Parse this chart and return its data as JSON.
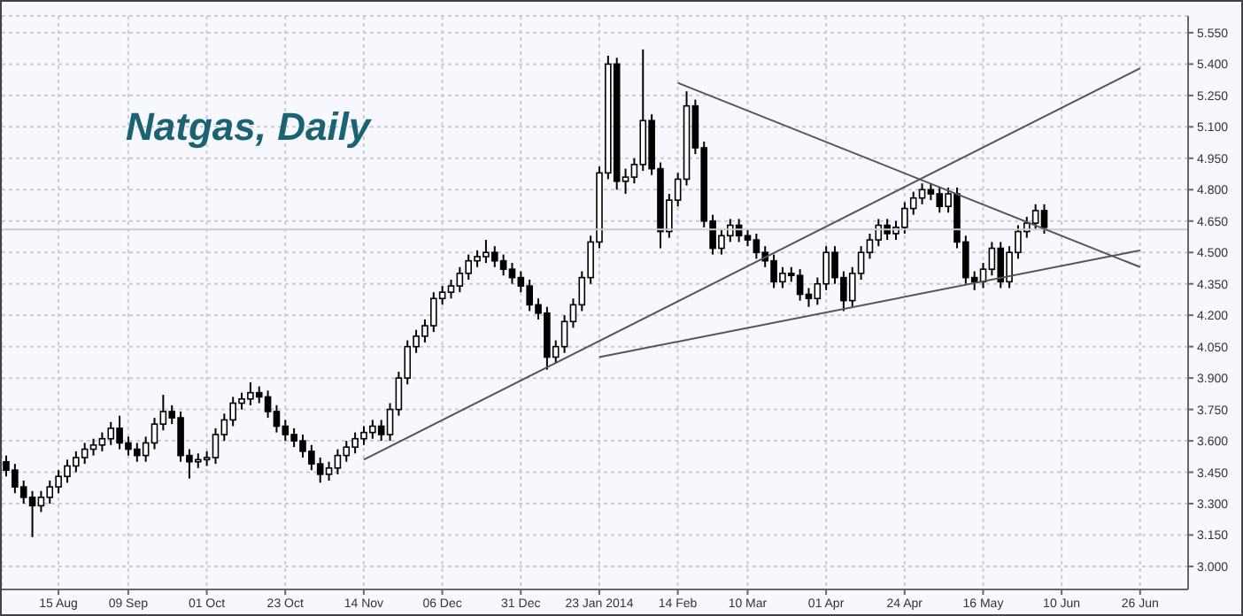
{
  "chart_data": {
    "type": "candlestick",
    "title": "Natgas, Daily",
    "color": "#000000",
    "grid": true,
    "categories": [
      null,
      null,
      null,
      null,
      null,
      null,
      "15 Aug",
      null,
      null,
      null,
      null,
      null,
      null,
      null,
      "09 Sep",
      null,
      null,
      null,
      null,
      null,
      null,
      null,
      null,
      "01 Oct",
      null,
      null,
      null,
      null,
      null,
      null,
      null,
      null,
      "23 Oct",
      null,
      null,
      null,
      null,
      null,
      null,
      null,
      null,
      "14 Nov",
      null,
      null,
      null,
      null,
      null,
      null,
      null,
      null,
      "06 Dec",
      null,
      null,
      null,
      null,
      null,
      null,
      null,
      null,
      "31 Dec",
      null,
      null,
      null,
      null,
      null,
      null,
      null,
      null,
      "23 Jan 2014",
      null,
      null,
      null,
      null,
      null,
      null,
      null,
      null,
      "14 Feb",
      null,
      null,
      null,
      null,
      null,
      null,
      null,
      "10 Mar",
      null,
      null,
      null,
      null,
      null,
      null,
      null,
      null,
      "01 Apr",
      null,
      null,
      null,
      null,
      null,
      null,
      null,
      null,
      "24 Apr",
      null,
      null,
      null,
      null,
      null,
      null,
      null,
      null,
      "16 May",
      null,
      null,
      null,
      null,
      null,
      null,
      null,
      null,
      "10 Jun",
      null,
      null,
      null,
      null,
      null,
      null,
      null,
      null,
      "26 Jun",
      null,
      null,
      null,
      null,
      null
    ],
    "ohlc": [
      [
        3.5,
        3.53,
        3.43,
        3.46
      ],
      [
        3.46,
        3.49,
        3.35,
        3.38
      ],
      [
        3.38,
        3.41,
        3.3,
        3.33
      ],
      [
        3.33,
        3.36,
        3.14,
        3.29
      ],
      [
        3.29,
        3.36,
        3.26,
        3.33
      ],
      [
        3.33,
        3.41,
        3.3,
        3.38
      ],
      [
        3.38,
        3.46,
        3.35,
        3.43
      ],
      [
        3.43,
        3.51,
        3.4,
        3.48
      ],
      [
        3.48,
        3.55,
        3.45,
        3.52
      ],
      [
        3.52,
        3.59,
        3.49,
        3.56
      ],
      [
        3.56,
        3.61,
        3.53,
        3.58
      ],
      [
        3.58,
        3.64,
        3.55,
        3.61
      ],
      [
        3.61,
        3.69,
        3.58,
        3.66
      ],
      [
        3.66,
        3.72,
        3.56,
        3.59
      ],
      [
        3.59,
        3.62,
        3.53,
        3.56
      ],
      [
        3.56,
        3.59,
        3.5,
        3.53
      ],
      [
        3.53,
        3.62,
        3.5,
        3.59
      ],
      [
        3.59,
        3.71,
        3.56,
        3.68
      ],
      [
        3.68,
        3.82,
        3.65,
        3.74
      ],
      [
        3.74,
        3.77,
        3.68,
        3.71
      ],
      [
        3.71,
        3.74,
        3.5,
        3.53
      ],
      [
        3.53,
        3.56,
        3.42,
        3.5
      ],
      [
        3.5,
        3.54,
        3.47,
        3.51
      ],
      [
        3.51,
        3.55,
        3.48,
        3.52
      ],
      [
        3.52,
        3.66,
        3.49,
        3.63
      ],
      [
        3.63,
        3.73,
        3.6,
        3.7
      ],
      [
        3.7,
        3.81,
        3.67,
        3.78
      ],
      [
        3.78,
        3.83,
        3.75,
        3.8
      ],
      [
        3.8,
        3.88,
        3.77,
        3.83
      ],
      [
        3.83,
        3.86,
        3.78,
        3.81
      ],
      [
        3.81,
        3.84,
        3.71,
        3.74
      ],
      [
        3.74,
        3.77,
        3.64,
        3.67
      ],
      [
        3.67,
        3.7,
        3.6,
        3.63
      ],
      [
        3.63,
        3.66,
        3.57,
        3.6
      ],
      [
        3.6,
        3.63,
        3.52,
        3.55
      ],
      [
        3.55,
        3.58,
        3.46,
        3.49
      ],
      [
        3.49,
        3.52,
        3.4,
        3.44
      ],
      [
        3.44,
        3.5,
        3.41,
        3.47
      ],
      [
        3.47,
        3.56,
        3.44,
        3.53
      ],
      [
        3.53,
        3.6,
        3.5,
        3.57
      ],
      [
        3.57,
        3.64,
        3.54,
        3.61
      ],
      [
        3.61,
        3.67,
        3.58,
        3.64
      ],
      [
        3.64,
        3.7,
        3.61,
        3.67
      ],
      [
        3.67,
        3.7,
        3.6,
        3.63
      ],
      [
        3.63,
        3.78,
        3.6,
        3.75
      ],
      [
        3.75,
        3.93,
        3.72,
        3.9
      ],
      [
        3.9,
        4.08,
        3.87,
        4.05
      ],
      [
        4.05,
        4.13,
        4.02,
        4.1
      ],
      [
        4.1,
        4.18,
        4.07,
        4.15
      ],
      [
        4.15,
        4.31,
        4.12,
        4.28
      ],
      [
        4.28,
        4.34,
        4.25,
        4.31
      ],
      [
        4.31,
        4.37,
        4.28,
        4.34
      ],
      [
        4.34,
        4.43,
        4.31,
        4.4
      ],
      [
        4.4,
        4.49,
        4.37,
        4.46
      ],
      [
        4.46,
        4.51,
        4.43,
        4.48
      ],
      [
        4.48,
        4.56,
        4.45,
        4.5
      ],
      [
        4.5,
        4.53,
        4.43,
        4.46
      ],
      [
        4.46,
        4.49,
        4.39,
        4.42
      ],
      [
        4.42,
        4.45,
        4.35,
        4.38
      ],
      [
        4.38,
        4.41,
        4.31,
        4.34
      ],
      [
        4.34,
        4.37,
        4.22,
        4.25
      ],
      [
        4.25,
        4.28,
        4.18,
        4.21
      ],
      [
        4.21,
        4.24,
        3.94,
        4.0
      ],
      [
        4.0,
        4.08,
        3.97,
        4.05
      ],
      [
        4.05,
        4.2,
        4.02,
        4.17
      ],
      [
        4.17,
        4.28,
        4.14,
        4.25
      ],
      [
        4.25,
        4.41,
        4.22,
        4.38
      ],
      [
        4.38,
        4.58,
        4.35,
        4.55
      ],
      [
        4.55,
        4.91,
        4.52,
        4.88
      ],
      [
        4.88,
        5.44,
        4.85,
        5.4
      ],
      [
        5.4,
        5.43,
        4.8,
        4.84
      ],
      [
        4.84,
        4.9,
        4.78,
        4.86
      ],
      [
        4.86,
        4.95,
        4.83,
        4.92
      ],
      [
        4.92,
        5.47,
        4.89,
        5.13
      ],
      [
        5.13,
        5.16,
        4.87,
        4.9
      ],
      [
        4.9,
        4.93,
        4.52,
        4.6
      ],
      [
        4.6,
        4.78,
        4.57,
        4.75
      ],
      [
        4.75,
        4.88,
        4.72,
        4.85
      ],
      [
        4.85,
        5.27,
        4.82,
        5.2
      ],
      [
        5.2,
        5.23,
        4.97,
        5.0
      ],
      [
        5.0,
        5.03,
        4.62,
        4.65
      ],
      [
        4.65,
        4.68,
        4.49,
        4.52
      ],
      [
        4.52,
        4.61,
        4.49,
        4.58
      ],
      [
        4.58,
        4.66,
        4.55,
        4.63
      ],
      [
        4.63,
        4.66,
        4.55,
        4.58
      ],
      [
        4.58,
        4.61,
        4.53,
        4.56
      ],
      [
        4.56,
        4.59,
        4.47,
        4.5
      ],
      [
        4.5,
        4.53,
        4.43,
        4.46
      ],
      [
        4.46,
        4.49,
        4.33,
        4.36
      ],
      [
        4.36,
        4.43,
        4.33,
        4.4
      ],
      [
        4.4,
        4.43,
        4.36,
        4.39
      ],
      [
        4.39,
        4.42,
        4.27,
        4.3
      ],
      [
        4.3,
        4.33,
        4.24,
        4.28
      ],
      [
        4.28,
        4.38,
        4.25,
        4.35
      ],
      [
        4.35,
        4.53,
        4.32,
        4.5
      ],
      [
        4.5,
        4.53,
        4.35,
        4.38
      ],
      [
        4.38,
        4.41,
        4.22,
        4.27
      ],
      [
        4.27,
        4.43,
        4.24,
        4.4
      ],
      [
        4.4,
        4.53,
        4.37,
        4.5
      ],
      [
        4.5,
        4.59,
        4.47,
        4.56
      ],
      [
        4.56,
        4.66,
        4.53,
        4.63
      ],
      [
        4.63,
        4.66,
        4.56,
        4.59
      ],
      [
        4.59,
        4.65,
        4.56,
        4.62
      ],
      [
        4.62,
        4.74,
        4.59,
        4.71
      ],
      [
        4.71,
        4.79,
        4.68,
        4.76
      ],
      [
        4.76,
        4.83,
        4.73,
        4.8
      ],
      [
        4.8,
        4.83,
        4.75,
        4.78
      ],
      [
        4.78,
        4.81,
        4.69,
        4.72
      ],
      [
        4.72,
        4.81,
        4.69,
        4.78
      ],
      [
        4.78,
        4.81,
        4.52,
        4.55
      ],
      [
        4.55,
        4.58,
        4.35,
        4.38
      ],
      [
        4.38,
        4.41,
        4.32,
        4.36
      ],
      [
        4.36,
        4.45,
        4.33,
        4.42
      ],
      [
        4.42,
        4.55,
        4.39,
        4.52
      ],
      [
        4.52,
        4.55,
        4.33,
        4.36
      ],
      [
        4.36,
        4.53,
        4.33,
        4.5
      ],
      [
        4.5,
        4.63,
        4.47,
        4.6
      ],
      [
        4.6,
        4.67,
        4.57,
        4.64
      ],
      [
        4.64,
        4.73,
        4.61,
        4.7
      ],
      [
        4.7,
        4.73,
        4.59,
        4.62
      ],
      null,
      null,
      null,
      null,
      null,
      null,
      null,
      null,
      null,
      null,
      null,
      null,
      null,
      null,
      null,
      null
    ],
    "series": [
      {
        "type": "line",
        "color": "#555555",
        "x": [
          "14 Nov",
          "26 Jun"
        ],
        "values": [
          3.51,
          5.38
        ]
      },
      {
        "type": "line",
        "color": "#555555",
        "x": [
          "23 Jan 2014",
          "26 Jun"
        ],
        "values": [
          4.0,
          4.51
        ]
      },
      {
        "type": "line",
        "color": "#555555",
        "x": [
          "14 Feb",
          "26 Jun"
        ],
        "values": [
          5.31,
          4.43
        ]
      }
    ],
    "ref_lines": [
      {
        "axis": "y",
        "value": 4.61,
        "color": "#cccccc"
      }
    ],
    "ylim": [
      2.89,
      5.63
    ],
    "yticks": [
      {
        "value": 3,
        "label": "3.000"
      },
      {
        "value": 3.15,
        "label": "3.150"
      },
      {
        "value": 3.3,
        "label": "3.300"
      },
      {
        "value": 3.45,
        "label": "3.450"
      },
      {
        "value": 3.6,
        "label": "3.600"
      },
      {
        "value": 3.75,
        "label": "3.750"
      },
      {
        "value": 3.9,
        "label": "3.900"
      },
      {
        "value": 4.05,
        "label": "4.050"
      },
      {
        "value": 4.2,
        "label": "4.200"
      },
      {
        "value": 4.35,
        "label": "4.350"
      },
      {
        "value": 4.5,
        "label": "4.500"
      },
      {
        "value": 4.65,
        "label": "4.650"
      },
      {
        "value": 4.8,
        "label": "4.800"
      },
      {
        "value": 4.95,
        "label": "4.950"
      },
      {
        "value": 5.1,
        "label": "5.100"
      },
      {
        "value": 5.25,
        "label": "5.250"
      },
      {
        "value": 5.4,
        "label": "5.400"
      },
      {
        "value": 5.55,
        "label": "5.550"
      }
    ]
  }
}
